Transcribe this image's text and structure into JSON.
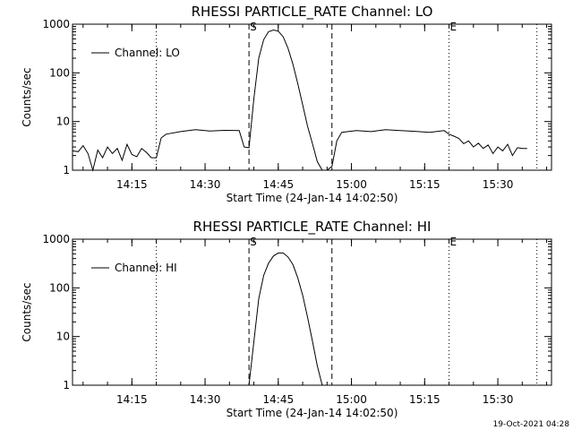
{
  "footer_stamp": "19-Oct-2021 04:28",
  "panels": [
    {
      "title": "RHESSI PARTICLE_RATE Channel: LO",
      "ylabel": "Counts/sec",
      "xlabel": "Start Time (24-Jan-14 14:02:50)",
      "legend": "Channel: LO",
      "marker_s": "S",
      "marker_e": "E",
      "xtick_labels": [
        "14:15",
        "14:30",
        "14:45",
        "15:00",
        "15:15",
        "15:30"
      ],
      "ytick_labels": [
        "1",
        "10",
        "100",
        "1000"
      ]
    },
    {
      "title": "RHESSI PARTICLE_RATE Channel: HI",
      "ylabel": "Counts/sec",
      "xlabel": "Start Time (24-Jan-14 14:02:50)",
      "legend": "Channel: HI",
      "marker_s": "S",
      "marker_e": "E",
      "xtick_labels": [
        "14:15",
        "14:30",
        "14:45",
        "15:00",
        "15:15",
        "15:30"
      ],
      "ytick_labels": [
        "1",
        "10",
        "100",
        "1000"
      ]
    }
  ],
  "chart_data": [
    {
      "type": "line",
      "title": "RHESSI PARTICLE_RATE Channel: LO",
      "xlabel": "Start Time (24-Jan-14 14:02:50)",
      "ylabel": "Counts/sec",
      "yscale": "log",
      "xlim": [
        "14:02:50",
        "15:41:00"
      ],
      "ylim": [
        1,
        1000
      ],
      "xticks": [
        "14:15",
        "14:30",
        "14:45",
        "15:00",
        "15:15",
        "15:30"
      ],
      "yticks": [
        1,
        10,
        100,
        1000
      ],
      "legend_position": "top-left",
      "vlines_dotted": [
        "14:20",
        "15:20",
        "15:38"
      ],
      "vlines_dashed": [
        "14:39",
        "14:56"
      ],
      "markers": [
        {
          "label": "S",
          "x": "14:39"
        },
        {
          "label": "E",
          "x": "15:20"
        }
      ],
      "series": [
        {
          "name": "Channel: LO",
          "x": [
            "14:02:50",
            "14:04",
            "14:05",
            "14:06",
            "14:07",
            "14:08",
            "14:09",
            "14:10",
            "14:11",
            "14:12",
            "14:13",
            "14:14",
            "14:15",
            "14:16",
            "14:17",
            "14:18",
            "14:19",
            "14:20",
            "14:21",
            "14:22",
            "14:25",
            "14:28",
            "14:31",
            "14:34",
            "14:37",
            "14:38",
            "14:39",
            "14:40",
            "14:41",
            "14:42",
            "14:43",
            "14:44",
            "14:45",
            "14:46",
            "14:47",
            "14:48",
            "14:49",
            "14:50",
            "14:51",
            "14:52",
            "14:53",
            "14:54",
            "14:55",
            "14:56",
            "14:57",
            "14:58",
            "15:01",
            "15:04",
            "15:07",
            "15:10",
            "15:13",
            "15:16",
            "15:19",
            "15:20",
            "15:21",
            "15:22",
            "15:23",
            "15:24",
            "15:25",
            "15:26",
            "15:27",
            "15:28",
            "15:29",
            "15:30",
            "15:31",
            "15:32",
            "15:33",
            "15:34",
            "15:35",
            "15:36"
          ],
          "y": [
            2.5,
            2.4,
            3.2,
            2.2,
            1.0,
            2.6,
            1.8,
            3.0,
            2.2,
            2.8,
            1.6,
            3.4,
            2.1,
            1.9,
            2.8,
            2.3,
            1.8,
            1.8,
            4.6,
            5.5,
            6.2,
            6.8,
            6.4,
            6.6,
            6.5,
            3.0,
            2.9,
            30,
            200,
            480,
            700,
            760,
            720,
            550,
            320,
            150,
            60,
            22,
            8,
            3.5,
            1.5,
            1.0,
            1.0,
            1.2,
            4.0,
            6.0,
            6.5,
            6.2,
            6.8,
            6.5,
            6.3,
            6.0,
            6.5,
            5.5,
            5.0,
            4.5,
            3.5,
            4.0,
            3.0,
            3.6,
            2.8,
            3.3,
            2.2,
            3.0,
            2.5,
            3.4,
            2.0,
            2.9,
            2.8,
            2.8
          ]
        }
      ]
    },
    {
      "type": "line",
      "title": "RHESSI PARTICLE_RATE Channel: HI",
      "xlabel": "Start Time (24-Jan-14 14:02:50)",
      "ylabel": "Counts/sec",
      "yscale": "log",
      "xlim": [
        "14:02:50",
        "15:41:00"
      ],
      "ylim": [
        1,
        1000
      ],
      "xticks": [
        "14:15",
        "14:30",
        "14:45",
        "15:00",
        "15:15",
        "15:30"
      ],
      "yticks": [
        1,
        10,
        100,
        1000
      ],
      "legend_position": "top-left",
      "vlines_dotted": [
        "14:20",
        "15:20",
        "15:38"
      ],
      "vlines_dashed": [
        "14:39",
        "14:56"
      ],
      "markers": [
        {
          "label": "S",
          "x": "14:39"
        },
        {
          "label": "E",
          "x": "15:20"
        }
      ],
      "series": [
        {
          "name": "Channel: HI",
          "x": [
            "14:39",
            "14:40",
            "14:41",
            "14:42",
            "14:43",
            "14:44",
            "14:45",
            "14:46",
            "14:47",
            "14:48",
            "14:49",
            "14:50",
            "14:51",
            "14:52",
            "14:53",
            "14:54"
          ],
          "y": [
            1.0,
            8,
            60,
            180,
            320,
            450,
            520,
            520,
            430,
            300,
            160,
            70,
            25,
            8,
            2.5,
            1.0
          ]
        }
      ]
    }
  ]
}
